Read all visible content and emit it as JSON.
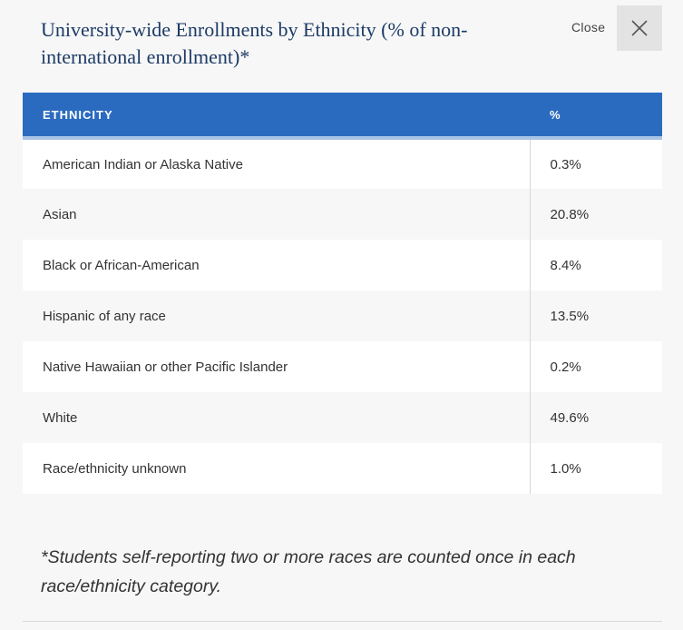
{
  "modal": {
    "title": "University-wide Enrollments by Ethnicity (% of non-international enrollment)*",
    "close_label": "Close",
    "close_icon": "close-icon"
  },
  "table": {
    "headers": [
      "ETHNICITY",
      "%"
    ],
    "rows": [
      {
        "ethnicity": "American Indian or Alaska Native",
        "percent": "0.3%"
      },
      {
        "ethnicity": "Asian",
        "percent": "20.8%"
      },
      {
        "ethnicity": "Black or African-American",
        "percent": "8.4%"
      },
      {
        "ethnicity": "Hispanic of any race",
        "percent": "13.5%"
      },
      {
        "ethnicity": "Native Hawaiian or other Pacific Islander",
        "percent": "0.2%"
      },
      {
        "ethnicity": "White",
        "percent": "49.6%"
      },
      {
        "ethnicity": "Race/ethnicity unknown",
        "percent": "1.0%"
      }
    ]
  },
  "footnote": "*Students self-reporting two or more races are counted once in each race/ethnicity category.",
  "colors": {
    "header_bg": "#2a6bbf",
    "title": "#1d3b66",
    "page_bg": "#f7f7f7"
  }
}
